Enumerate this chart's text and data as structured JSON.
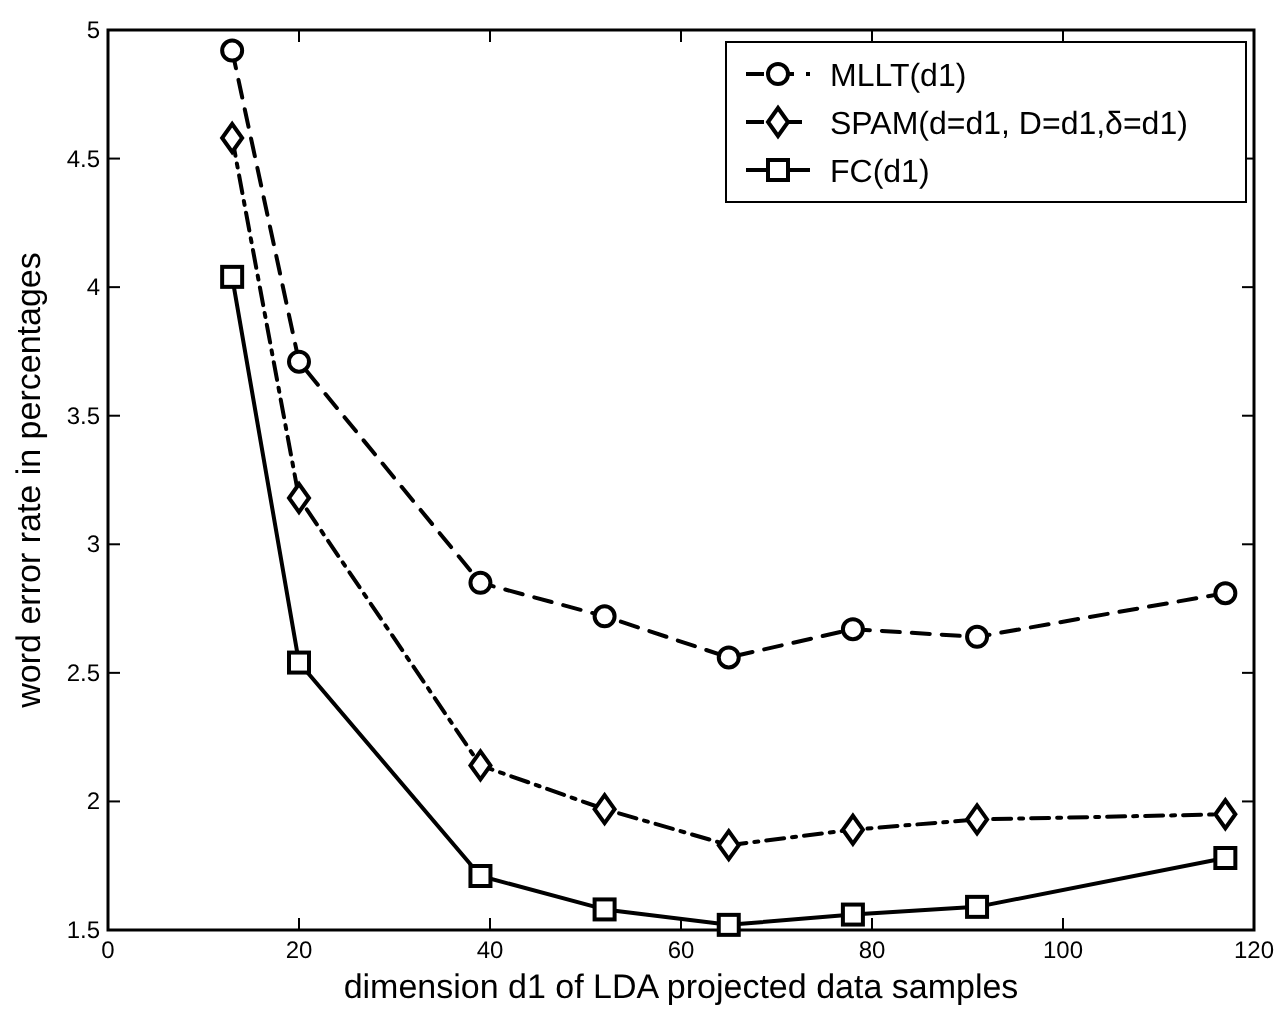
{
  "chart_data": {
    "type": "line",
    "xlabel": "dimension d1 of LDA projected data samples",
    "ylabel": "word error rate in percentages",
    "x": [
      13,
      20,
      39,
      52,
      65,
      78,
      91,
      117
    ],
    "series": [
      {
        "name": "MLLT(d1)",
        "color": "#000000",
        "marker": "circle",
        "line_style": "dashed",
        "values": [
          4.92,
          3.71,
          2.85,
          2.72,
          2.56,
          2.67,
          2.64,
          2.81
        ]
      },
      {
        "name": "SPAM(d=d1, D=d1,δ=d1)",
        "color": "#000000",
        "marker": "diamond",
        "line_style": "dashdot",
        "values": [
          4.58,
          3.18,
          2.14,
          1.97,
          1.83,
          1.89,
          1.93,
          1.95
        ]
      },
      {
        "name": "FC(d1)",
        "color": "#000000",
        "marker": "square",
        "line_style": "solid",
        "values": [
          4.04,
          2.54,
          1.71,
          1.58,
          1.52,
          1.56,
          1.59,
          1.78
        ]
      }
    ],
    "xlim": [
      0,
      120
    ],
    "xticks": [
      0,
      20,
      40,
      60,
      80,
      100,
      120
    ],
    "ylim": [
      1.5,
      5
    ],
    "yticks": [
      1.5,
      2,
      2.5,
      3,
      3.5,
      4,
      4.5,
      5
    ],
    "grid": false,
    "legend": "top right"
  }
}
